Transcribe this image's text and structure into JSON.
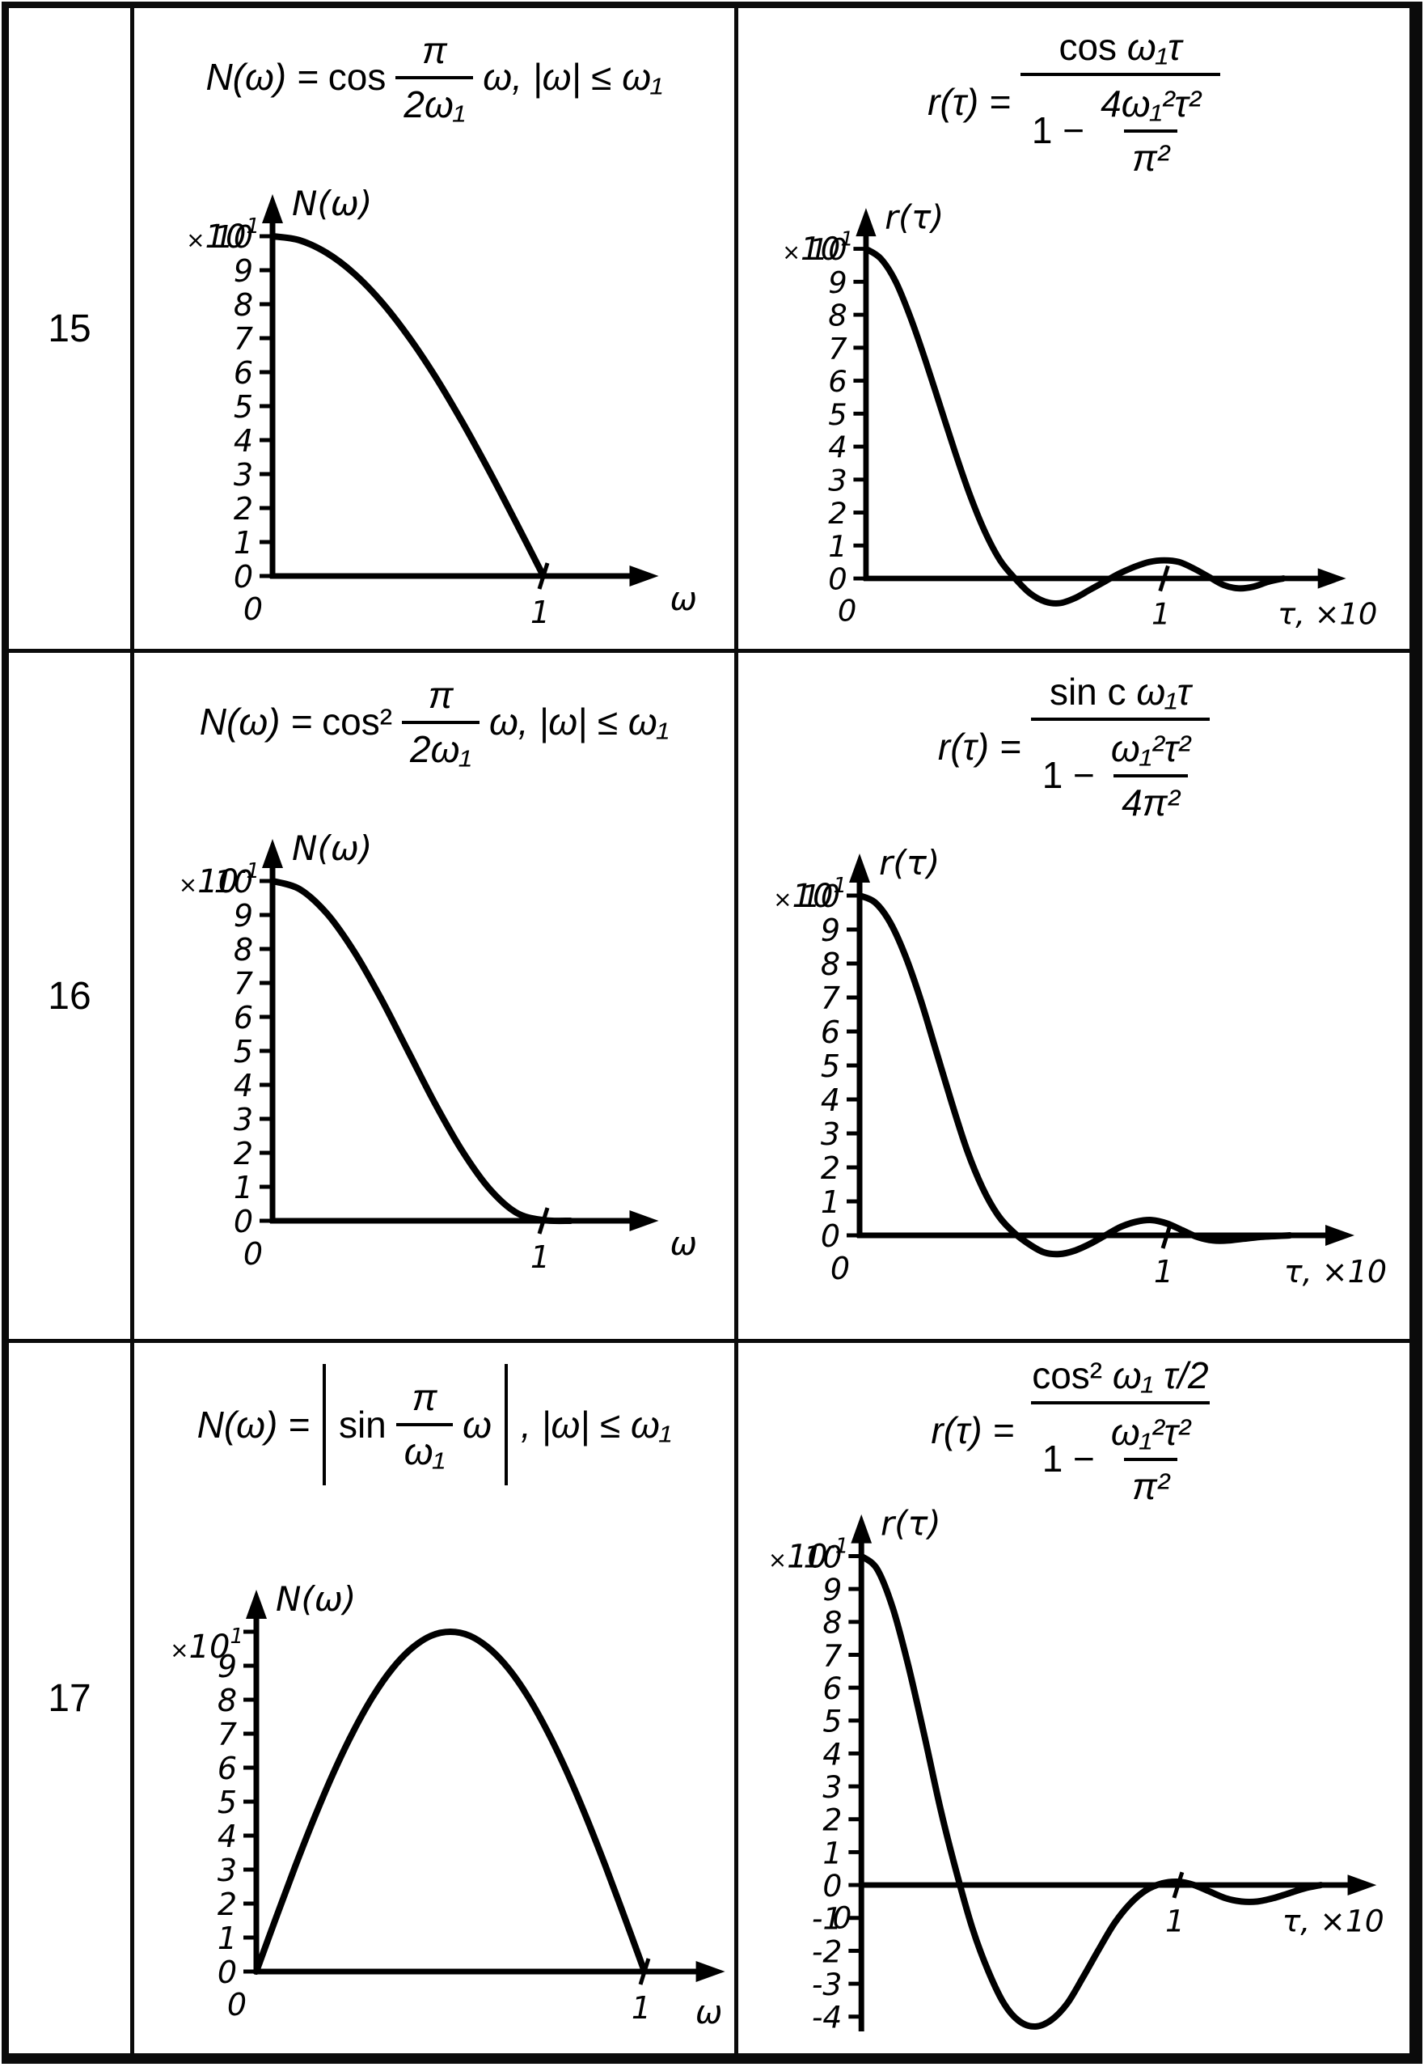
{
  "table": {
    "rows": [
      {
        "num": "15",
        "left_formula": {
          "lhs": "N(ω) =",
          "func": "cos",
          "frac_num": "π",
          "frac_den": "2ω₁",
          "tail": "ω, |ω| ≤ ω₁"
        },
        "right_formula": {
          "lhs": "r(τ) =",
          "num_func": "cos",
          "num_var": "ω₁τ",
          "den_pre": "1 −",
          "inner_num": "4ω₁²τ²",
          "inner_den": "π²"
        }
      },
      {
        "num": "16",
        "left_formula": {
          "lhs": "N(ω) =",
          "func": "cos²",
          "frac_num": "π",
          "frac_den": "2ω₁",
          "tail": "ω, |ω| ≤ ω₁"
        },
        "right_formula": {
          "lhs": "r(τ) =",
          "num_func": "sin c",
          "num_var": "ω₁τ",
          "den_pre": "1 −",
          "inner_num": "ω₁²τ²",
          "inner_den": "4π²"
        }
      },
      {
        "num": "17",
        "left_formula": {
          "lhs": "N(ω) =",
          "func": "sin",
          "frac_num": "π",
          "frac_den": "ω₁",
          "arg": "ω",
          "tail": ", |ω| ≤ ω₁"
        },
        "right_formula": {
          "lhs": "r(τ) =",
          "num_func": "cos²",
          "num_var": "ω₁ τ/2",
          "den_pre": "1 −",
          "inner_num": "ω₁²τ²",
          "inner_den": "π²"
        }
      }
    ]
  },
  "chart_data": [
    {
      "id": "p15l",
      "type": "line",
      "formula": "N(ω) = cos(π/2ω₁)ω, |ω| ≤ ω₁",
      "y_name": "N(ω)",
      "x_name": "ω",
      "y_scale": "×10",
      "y_scale_sup": "1",
      "xlim": [
        0,
        1.3
      ],
      "ylim": [
        0,
        10
      ],
      "x_ticks": [
        {
          "v": 0,
          "label": "0"
        },
        {
          "v": 1,
          "label": "1"
        }
      ],
      "y_ticks": [
        {
          "v": 10,
          "label": "10"
        },
        {
          "v": 9,
          "label": "9"
        },
        {
          "v": 8,
          "label": "8"
        },
        {
          "v": 7,
          "label": "7"
        },
        {
          "v": 6,
          "label": "6"
        },
        {
          "v": 5,
          "label": "5"
        },
        {
          "v": 4,
          "label": "4"
        },
        {
          "v": 3,
          "label": "3"
        },
        {
          "v": 2,
          "label": "2"
        },
        {
          "v": 1,
          "label": "1"
        },
        {
          "v": 0,
          "label": "0"
        }
      ],
      "points": [
        [
          0,
          10
        ],
        [
          0.1,
          9.88
        ],
        [
          0.2,
          9.51
        ],
        [
          0.3,
          8.91
        ],
        [
          0.4,
          8.09
        ],
        [
          0.5,
          7.07
        ],
        [
          0.6,
          5.88
        ],
        [
          0.7,
          4.54
        ],
        [
          0.8,
          3.09
        ],
        [
          0.9,
          1.56
        ],
        [
          1,
          0
        ]
      ]
    },
    {
      "id": "p15r",
      "type": "line",
      "formula": "r(τ) = cos ω₁τ / (1 − 4ω₁²τ²/π²)",
      "y_name": "r(τ)",
      "x_name": "τ, ×10",
      "y_scale": "×10",
      "y_scale_sup": "1",
      "xlim": [
        0,
        1.5
      ],
      "ylim": [
        -1,
        10
      ],
      "x_ticks": [
        {
          "v": 0,
          "label": "0"
        },
        {
          "v": 1,
          "label": "1"
        }
      ],
      "y_ticks": [
        {
          "v": 10,
          "label": "10"
        },
        {
          "v": 9,
          "label": "9"
        },
        {
          "v": 8,
          "label": "8"
        },
        {
          "v": 7,
          "label": "7"
        },
        {
          "v": 6,
          "label": "6"
        },
        {
          "v": 5,
          "label": "5"
        },
        {
          "v": 4,
          "label": "4"
        },
        {
          "v": 3,
          "label": "3"
        },
        {
          "v": 2,
          "label": "2"
        },
        {
          "v": 1,
          "label": "1"
        },
        {
          "v": 0,
          "label": "0"
        }
      ],
      "points": [
        [
          0,
          10
        ],
        [
          0.05,
          9.7
        ],
        [
          0.1,
          9.0
        ],
        [
          0.15,
          7.9
        ],
        [
          0.2,
          6.6
        ],
        [
          0.25,
          5.2
        ],
        [
          0.3,
          3.8
        ],
        [
          0.35,
          2.5
        ],
        [
          0.4,
          1.4
        ],
        [
          0.45,
          0.55
        ],
        [
          0.5,
          0
        ],
        [
          0.55,
          -0.45
        ],
        [
          0.6,
          -0.7
        ],
        [
          0.65,
          -0.75
        ],
        [
          0.7,
          -0.6
        ],
        [
          0.75,
          -0.35
        ],
        [
          0.8,
          -0.1
        ],
        [
          0.85,
          0.15
        ],
        [
          0.9,
          0.35
        ],
        [
          0.95,
          0.5
        ],
        [
          1.0,
          0.55
        ],
        [
          1.05,
          0.5
        ],
        [
          1.1,
          0.3
        ],
        [
          1.15,
          0.05
        ],
        [
          1.2,
          -0.2
        ],
        [
          1.25,
          -0.3
        ],
        [
          1.3,
          -0.25
        ],
        [
          1.35,
          -0.1
        ],
        [
          1.4,
          0
        ]
      ]
    },
    {
      "id": "p16l",
      "type": "line",
      "formula": "N(ω) = cos²(π/2ω₁)ω, |ω| ≤ ω₁",
      "y_name": "N(ω)",
      "x_name": "ω",
      "y_scale": "×10",
      "y_scale_sup": "-1",
      "xlim": [
        0,
        1.3
      ],
      "ylim": [
        0,
        10
      ],
      "x_ticks": [
        {
          "v": 0,
          "label": "0"
        },
        {
          "v": 1,
          "label": "1"
        }
      ],
      "y_ticks": [
        {
          "v": 10,
          "label": "10"
        },
        {
          "v": 9,
          "label": "9"
        },
        {
          "v": 8,
          "label": "8"
        },
        {
          "v": 7,
          "label": "7"
        },
        {
          "v": 6,
          "label": "6"
        },
        {
          "v": 5,
          "label": "5"
        },
        {
          "v": 4,
          "label": "4"
        },
        {
          "v": 3,
          "label": "3"
        },
        {
          "v": 2,
          "label": "2"
        },
        {
          "v": 1,
          "label": "1"
        },
        {
          "v": 0,
          "label": "0"
        }
      ],
      "points": [
        [
          0,
          10
        ],
        [
          0.1,
          9.76
        ],
        [
          0.2,
          9.05
        ],
        [
          0.3,
          7.94
        ],
        [
          0.4,
          6.55
        ],
        [
          0.5,
          5
        ],
        [
          0.6,
          3.45
        ],
        [
          0.7,
          2.06
        ],
        [
          0.8,
          0.95
        ],
        [
          0.9,
          0.24
        ],
        [
          1,
          0.02
        ],
        [
          1.1,
          0
        ]
      ]
    },
    {
      "id": "p16r",
      "type": "line",
      "formula": "r(τ) = sinc ω₁τ / (1 − ω₁²τ²/4π²)",
      "y_name": "r(τ)",
      "x_name": "τ, ×10",
      "y_scale": "×10",
      "y_scale_sup": "1",
      "xlim": [
        0,
        1.5
      ],
      "ylim": [
        -1,
        10
      ],
      "x_ticks": [
        {
          "v": 0,
          "label": "0"
        },
        {
          "v": 1,
          "label": "1"
        }
      ],
      "y_ticks": [
        {
          "v": 10,
          "label": "10"
        },
        {
          "v": 9,
          "label": "9"
        },
        {
          "v": 8,
          "label": "8"
        },
        {
          "v": 7,
          "label": "7"
        },
        {
          "v": 6,
          "label": "6"
        },
        {
          "v": 5,
          "label": "5"
        },
        {
          "v": 4,
          "label": "4"
        },
        {
          "v": 3,
          "label": "3"
        },
        {
          "v": 2,
          "label": "2"
        },
        {
          "v": 1,
          "label": "1"
        },
        {
          "v": 0,
          "label": "0"
        }
      ],
      "points": [
        [
          0,
          10
        ],
        [
          0.05,
          9.8
        ],
        [
          0.1,
          9.2
        ],
        [
          0.15,
          8.2
        ],
        [
          0.2,
          6.9
        ],
        [
          0.25,
          5.4
        ],
        [
          0.3,
          3.9
        ],
        [
          0.35,
          2.5
        ],
        [
          0.4,
          1.4
        ],
        [
          0.45,
          0.6
        ],
        [
          0.5,
          0.1
        ],
        [
          0.55,
          -0.25
        ],
        [
          0.6,
          -0.5
        ],
        [
          0.65,
          -0.55
        ],
        [
          0.7,
          -0.45
        ],
        [
          0.75,
          -0.25
        ],
        [
          0.8,
          0
        ],
        [
          0.85,
          0.25
        ],
        [
          0.9,
          0.4
        ],
        [
          0.95,
          0.45
        ],
        [
          1.0,
          0.35
        ],
        [
          1.05,
          0.15
        ],
        [
          1.1,
          -0.05
        ],
        [
          1.15,
          -0.15
        ],
        [
          1.2,
          -0.15
        ],
        [
          1.3,
          -0.05
        ],
        [
          1.4,
          0
        ]
      ]
    },
    {
      "id": "p17l",
      "type": "line",
      "formula": "N(ω) = |sin(π/ω₁)ω|, |ω| ≤ ω₁",
      "y_name": "N(ω)",
      "x_name": "ω",
      "y_scale": "×10",
      "y_scale_sup": "1",
      "xlim": [
        0,
        1.12
      ],
      "ylim": [
        0,
        10
      ],
      "x_ticks": [
        {
          "v": 0,
          "label": "0"
        },
        {
          "v": 1,
          "label": "1"
        }
      ],
      "y_ticks": [
        {
          "v": 10,
          "label": ""
        },
        {
          "v": 9,
          "label": "9"
        },
        {
          "v": 8,
          "label": "8"
        },
        {
          "v": 7,
          "label": "7"
        },
        {
          "v": 6,
          "label": "6"
        },
        {
          "v": 5,
          "label": "5"
        },
        {
          "v": 4,
          "label": "4"
        },
        {
          "v": 3,
          "label": "3"
        },
        {
          "v": 2,
          "label": "2"
        },
        {
          "v": 1,
          "label": "1"
        },
        {
          "v": 0,
          "label": "0"
        }
      ],
      "points": [
        [
          0,
          0
        ],
        [
          0.05,
          1.56
        ],
        [
          0.1,
          3.09
        ],
        [
          0.15,
          4.54
        ],
        [
          0.2,
          5.88
        ],
        [
          0.25,
          7.07
        ],
        [
          0.3,
          8.09
        ],
        [
          0.35,
          8.91
        ],
        [
          0.4,
          9.51
        ],
        [
          0.45,
          9.88
        ],
        [
          0.5,
          10
        ],
        [
          0.55,
          9.88
        ],
        [
          0.6,
          9.51
        ],
        [
          0.65,
          8.91
        ],
        [
          0.7,
          8.09
        ],
        [
          0.75,
          7.07
        ],
        [
          0.8,
          5.88
        ],
        [
          0.85,
          4.54
        ],
        [
          0.9,
          3.09
        ],
        [
          0.95,
          1.56
        ],
        [
          1,
          0
        ]
      ]
    },
    {
      "id": "p17r",
      "type": "line",
      "formula": "r(τ) = cos²(ω₁τ/2) / (1 − ω₁²τ²/π²)",
      "y_name": "r(τ)",
      "x_name": "τ, ×10",
      "y_scale": "×10",
      "y_scale_sup": "-1",
      "xlim": [
        0,
        1.52
      ],
      "ylim": [
        -4.5,
        10
      ],
      "x_ticks": [
        {
          "v": 0,
          "label": "0"
        },
        {
          "v": 1,
          "label": "1"
        }
      ],
      "y_ticks": [
        {
          "v": 10,
          "label": "10"
        },
        {
          "v": 9,
          "label": "9"
        },
        {
          "v": 8,
          "label": "8"
        },
        {
          "v": 7,
          "label": "7"
        },
        {
          "v": 6,
          "label": "6"
        },
        {
          "v": 5,
          "label": "5"
        },
        {
          "v": 4,
          "label": "4"
        },
        {
          "v": 3,
          "label": "3"
        },
        {
          "v": 2,
          "label": "2"
        },
        {
          "v": 1,
          "label": "1"
        },
        {
          "v": 0,
          "label": "0"
        },
        {
          "v": -1,
          "label": "-1"
        },
        {
          "v": -2,
          "label": "-2"
        },
        {
          "v": -3,
          "label": "-3"
        },
        {
          "v": -4,
          "label": "-4"
        }
      ],
      "points": [
        [
          0,
          10
        ],
        [
          0.05,
          9.6
        ],
        [
          0.1,
          8.4
        ],
        [
          0.15,
          6.6
        ],
        [
          0.2,
          4.5
        ],
        [
          0.25,
          2.3
        ],
        [
          0.3,
          0.4
        ],
        [
          0.35,
          -1.3
        ],
        [
          0.4,
          -2.6
        ],
        [
          0.45,
          -3.6
        ],
        [
          0.5,
          -4.15
        ],
        [
          0.55,
          -4.3
        ],
        [
          0.6,
          -4.1
        ],
        [
          0.65,
          -3.6
        ],
        [
          0.7,
          -2.8
        ],
        [
          0.75,
          -1.95
        ],
        [
          0.8,
          -1.15
        ],
        [
          0.85,
          -0.55
        ],
        [
          0.9,
          -0.15
        ],
        [
          0.95,
          0.05
        ],
        [
          1.0,
          0.1
        ],
        [
          1.05,
          0
        ],
        [
          1.1,
          -0.2
        ],
        [
          1.15,
          -0.4
        ],
        [
          1.2,
          -0.5
        ],
        [
          1.25,
          -0.5
        ],
        [
          1.3,
          -0.4
        ],
        [
          1.35,
          -0.25
        ],
        [
          1.4,
          -0.1
        ],
        [
          1.45,
          0
        ]
      ]
    }
  ]
}
